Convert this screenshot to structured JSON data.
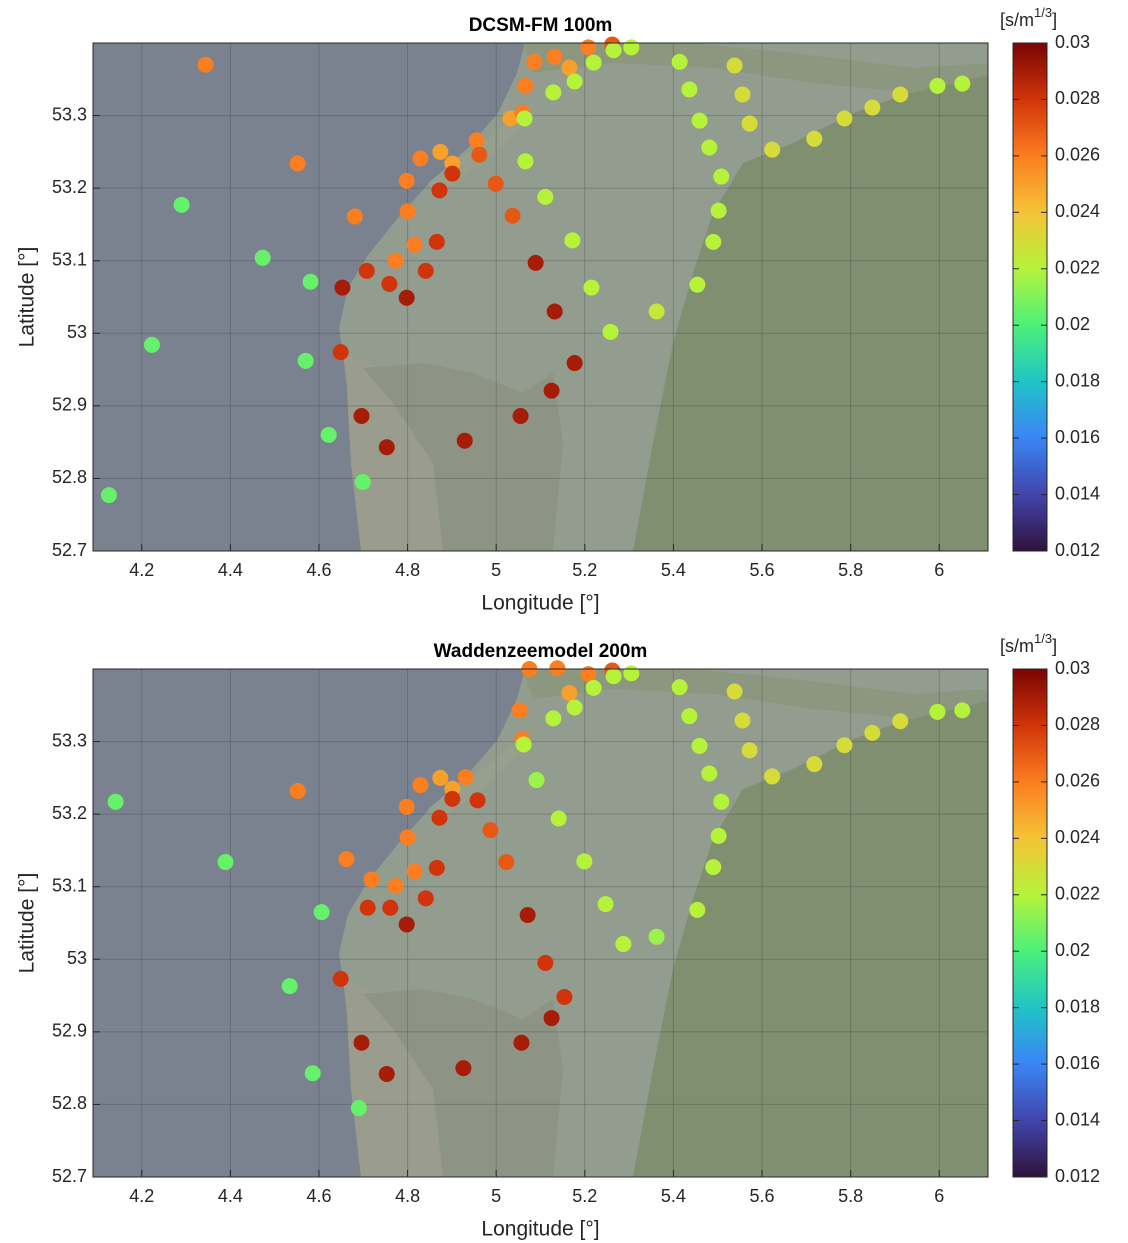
{
  "chart_data": [
    {
      "type": "scatter",
      "title": "DCSM-FM 100m",
      "xlabel": "Longitude [°]",
      "ylabel": "Latitude [°]",
      "xlim": [
        4.09,
        6.11
      ],
      "ylim": [
        52.7,
        53.4
      ],
      "xticks": [
        4.2,
        4.4,
        4.6,
        4.8,
        5,
        5.2,
        5.4,
        5.6,
        5.8,
        6
      ],
      "yticks": [
        52.7,
        52.8,
        52.9,
        53,
        53.1,
        53.2,
        53.3
      ],
      "grid": true,
      "x": [
        4.344,
        4.552,
        4.29,
        4.473,
        4.581,
        4.223,
        4.57,
        4.622,
        4.126,
        4.699,
        4.653,
        4.708,
        4.649,
        4.696,
        4.753,
        4.759,
        4.798,
        4.773,
        4.816,
        4.841,
        4.866,
        4.8,
        4.681,
        4.798,
        4.829,
        4.872,
        4.874,
        4.901,
        4.901,
        4.956,
        4.962,
        4.999,
        5.037,
        4.929,
        5.055,
        5.089,
        5.132,
        5.125,
        5.177,
        5.032,
        5.059,
        5.064,
        5.066,
        5.111,
        5.172,
        5.215,
        5.258,
        5.362,
        5.454,
        5.49,
        5.502,
        5.508,
        5.481,
        5.459,
        5.436,
        5.414,
        5.066,
        5.086,
        5.129,
        5.132,
        5.165,
        5.177,
        5.208,
        5.22,
        5.262,
        5.265,
        5.305,
        5.538,
        5.556,
        5.572,
        5.623,
        5.718,
        5.786,
        5.849,
        5.912,
        5.996,
        6.052
      ],
      "y": [
        53.37,
        53.234,
        53.177,
        53.104,
        53.071,
        52.984,
        52.962,
        52.86,
        52.777,
        52.795,
        53.063,
        53.086,
        52.974,
        52.886,
        52.843,
        53.068,
        53.049,
        53.1,
        53.122,
        53.086,
        53.126,
        53.168,
        53.161,
        53.21,
        53.241,
        53.197,
        53.25,
        53.234,
        53.22,
        53.266,
        53.246,
        53.206,
        53.162,
        52.852,
        52.886,
        53.097,
        53.03,
        52.921,
        52.959,
        53.296,
        53.304,
        53.296,
        53.237,
        53.188,
        53.128,
        53.063,
        53.002,
        53.03,
        53.067,
        53.126,
        53.169,
        53.216,
        53.256,
        53.293,
        53.336,
        53.374,
        53.341,
        53.374,
        53.332,
        53.381,
        53.366,
        53.347,
        53.394,
        53.373,
        53.398,
        53.39,
        53.394,
        53.369,
        53.329,
        53.289,
        53.253,
        53.268,
        53.296,
        53.311,
        53.329,
        53.341,
        53.344
      ],
      "values": [
        0.026,
        0.026,
        0.0205,
        0.0205,
        0.0205,
        0.0205,
        0.0205,
        0.0205,
        0.0205,
        0.0205,
        0.029,
        0.028,
        0.028,
        0.029,
        0.029,
        0.028,
        0.029,
        0.026,
        0.026,
        0.028,
        0.028,
        0.026,
        0.026,
        0.026,
        0.026,
        0.028,
        0.025,
        0.025,
        0.028,
        0.026,
        0.027,
        0.027,
        0.027,
        0.029,
        0.029,
        0.029,
        0.029,
        0.029,
        0.029,
        0.025,
        0.026,
        0.022,
        0.022,
        0.022,
        0.022,
        0.022,
        0.022,
        0.0225,
        0.022,
        0.022,
        0.022,
        0.022,
        0.022,
        0.022,
        0.022,
        0.022,
        0.026,
        0.026,
        0.022,
        0.026,
        0.025,
        0.022,
        0.026,
        0.022,
        0.027,
        0.022,
        0.022,
        0.023,
        0.023,
        0.023,
        0.023,
        0.023,
        0.023,
        0.023,
        0.023,
        0.022,
        0.022
      ],
      "clim": [
        0.012,
        0.03
      ],
      "cticks": [
        0.012,
        0.014,
        0.016,
        0.018,
        0.02,
        0.022,
        0.024,
        0.026,
        0.028,
        0.03
      ],
      "colorbar_unit": [
        "[s/m",
        "1/3",
        "]"
      ],
      "colormap": [
        "#30123b",
        "#4145ab",
        "#3a85f5",
        "#1fc4c6",
        "#4cf07a",
        "#b5f33a",
        "#f5c336",
        "#fb7e20",
        "#d1340a",
        "#7a0403"
      ]
    },
    {
      "type": "scatter",
      "title": "Waddenzeemodel 200m",
      "xlabel": "Longitude [°]",
      "ylabel": "Latitude [°]",
      "xlim": [
        4.09,
        6.11
      ],
      "ylim": [
        52.7,
        53.4
      ],
      "xticks": [
        4.2,
        4.4,
        4.6,
        4.8,
        5,
        5.2,
        5.4,
        5.6,
        5.8,
        6
      ],
      "yticks": [
        52.7,
        52.8,
        52.9,
        53,
        53.1,
        53.2,
        53.3
      ],
      "grid": true,
      "x": [
        4.141,
        4.552,
        4.389,
        4.606,
        4.534,
        4.586,
        4.69,
        4.662,
        4.719,
        4.71,
        4.761,
        4.798,
        4.773,
        4.816,
        4.841,
        4.866,
        4.8,
        4.798,
        4.829,
        4.872,
        4.874,
        4.901,
        4.901,
        4.931,
        4.958,
        4.987,
        5.023,
        4.649,
        4.696,
        4.753,
        4.926,
        5.057,
        5.071,
        5.111,
        5.154,
        5.125,
        5.053,
        5.059,
        5.062,
        5.091,
        5.141,
        5.199,
        5.247,
        5.287,
        5.362,
        5.454,
        5.49,
        5.502,
        5.508,
        5.481,
        5.459,
        5.436,
        5.414,
        5.075,
        5.129,
        5.138,
        5.165,
        5.177,
        5.208,
        5.22,
        5.262,
        5.265,
        5.305,
        5.538,
        5.556,
        5.572,
        5.623,
        5.718,
        5.786,
        5.849,
        5.912,
        5.996,
        6.052
      ],
      "y": [
        53.217,
        53.232,
        53.134,
        53.065,
        52.963,
        52.843,
        52.795,
        53.138,
        53.11,
        53.071,
        53.071,
        53.048,
        53.101,
        53.121,
        53.084,
        53.126,
        53.168,
        53.21,
        53.24,
        53.195,
        53.25,
        53.235,
        53.221,
        53.251,
        53.219,
        53.178,
        53.134,
        52.973,
        52.885,
        52.842,
        52.85,
        52.885,
        53.061,
        52.995,
        52.948,
        52.919,
        53.343,
        53.303,
        53.296,
        53.247,
        53.194,
        53.135,
        53.076,
        53.021,
        53.031,
        53.068,
        53.127,
        53.17,
        53.217,
        53.256,
        53.294,
        53.335,
        53.375,
        53.4,
        53.332,
        53.401,
        53.367,
        53.347,
        53.393,
        53.374,
        53.398,
        53.39,
        53.394,
        53.369,
        53.329,
        53.288,
        53.252,
        53.269,
        53.295,
        53.312,
        53.328,
        53.341,
        53.343
      ],
      "values": [
        0.0205,
        0.026,
        0.0205,
        0.0205,
        0.0205,
        0.0205,
        0.0205,
        0.026,
        0.026,
        0.028,
        0.028,
        0.029,
        0.026,
        0.026,
        0.028,
        0.028,
        0.026,
        0.026,
        0.026,
        0.028,
        0.025,
        0.025,
        0.028,
        0.026,
        0.028,
        0.027,
        0.027,
        0.028,
        0.029,
        0.029,
        0.029,
        0.029,
        0.029,
        0.028,
        0.028,
        0.029,
        0.026,
        0.026,
        0.022,
        0.0215,
        0.022,
        0.022,
        0.022,
        0.022,
        0.0215,
        0.022,
        0.022,
        0.022,
        0.022,
        0.022,
        0.022,
        0.022,
        0.022,
        0.026,
        0.022,
        0.026,
        0.025,
        0.022,
        0.026,
        0.022,
        0.027,
        0.022,
        0.022,
        0.023,
        0.023,
        0.023,
        0.023,
        0.023,
        0.023,
        0.023,
        0.023,
        0.022,
        0.022
      ],
      "clim": [
        0.012,
        0.03
      ],
      "cticks": [
        0.012,
        0.014,
        0.016,
        0.018,
        0.02,
        0.022,
        0.024,
        0.026,
        0.028,
        0.03
      ],
      "colorbar_unit": [
        "[s/m",
        "1/3",
        "]"
      ],
      "colormap": [
        "#30123b",
        "#4145ab",
        "#3a85f5",
        "#1fc4c6",
        "#4cf07a",
        "#b5f33a",
        "#f5c336",
        "#fb7e20",
        "#d1340a",
        "#7a0403"
      ]
    }
  ]
}
